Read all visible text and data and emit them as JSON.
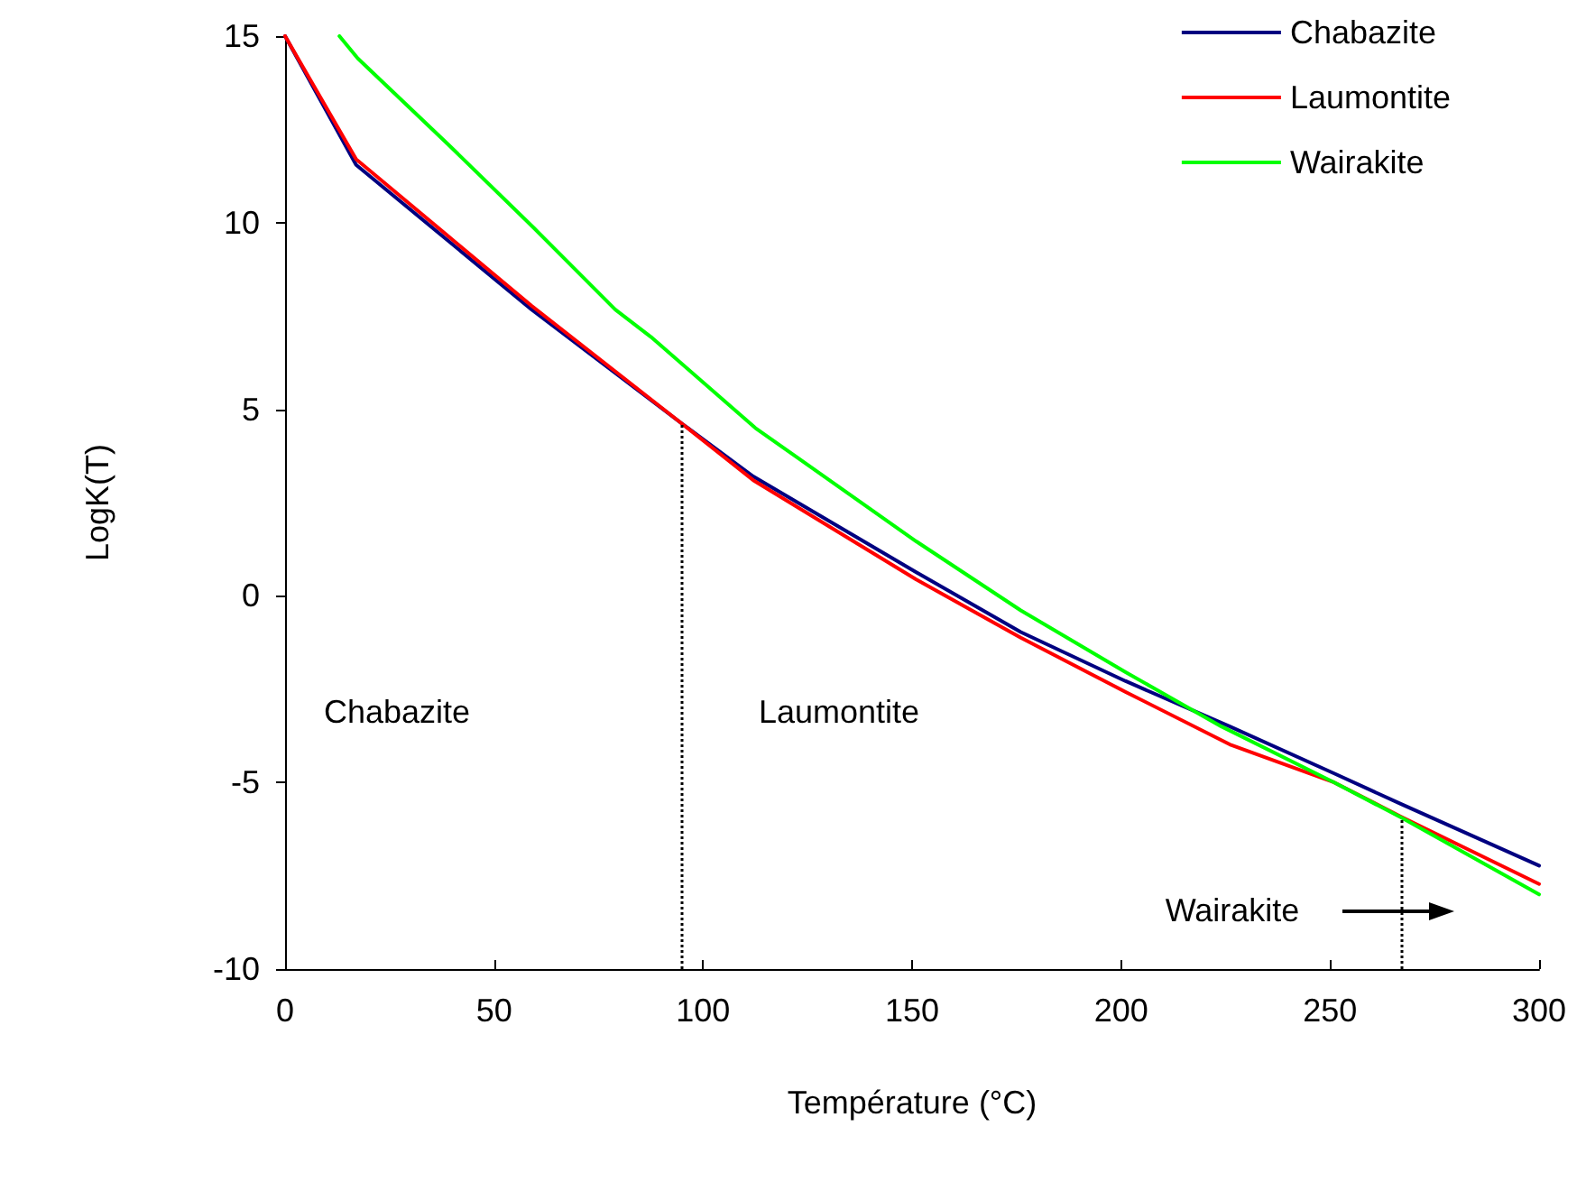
{
  "chart_data": {
    "type": "line",
    "xlabel": "Température (°C)",
    "ylabel": "LogK(T)",
    "xlim": [
      0,
      300
    ],
    "xticks": [
      0,
      50,
      100,
      150,
      200,
      250,
      300
    ],
    "ylim": [
      -10,
      15
    ],
    "yticks": [
      -10,
      -5,
      0,
      5,
      10,
      15
    ],
    "grid": false,
    "legend": "top right",
    "marker": "none",
    "line_style": "solid",
    "series": [
      {
        "name": "Chabazite",
        "color": "#000080",
        "x": [
          0,
          17,
          59,
          95,
          112,
          151,
          176,
          201,
          226,
          251,
          267,
          300
        ],
        "values": [
          15,
          11.55,
          7.67,
          4.61,
          3.2,
          0.63,
          -0.97,
          -2.28,
          -3.5,
          -4.76,
          -5.58,
          -7.23
        ]
      },
      {
        "name": "Laumontite",
        "color": "#ff0000",
        "x": [
          0,
          17,
          59,
          95,
          112,
          151,
          176,
          201,
          226,
          251,
          267,
          300
        ],
        "values": [
          15,
          11.7,
          7.77,
          4.61,
          3.1,
          0.44,
          -1.12,
          -2.57,
          -3.98,
          -5.0,
          -5.92,
          -7.72
        ]
      },
      {
        "name": "Wairakite",
        "color": "#00ff00",
        "x": [
          13,
          17.4,
          39,
          59.6,
          79,
          87.5,
          112.5,
          151,
          176,
          201,
          224,
          251,
          267.5,
          300
        ],
        "values": [
          15,
          14.4,
          12.1,
          9.85,
          7.67,
          6.94,
          4.5,
          1.46,
          -0.39,
          -2.04,
          -3.5,
          -5.0,
          -5.97,
          -8.0
        ]
      }
    ],
    "ref_lines": [
      {
        "axis": "x",
        "value": 95,
        "color": "#000000",
        "line_style": "dotted"
      },
      {
        "axis": "x",
        "value": 267,
        "color": "#000000",
        "line_style": "dotted"
      }
    ],
    "annotations": [
      "Chabazite",
      "Laumontite",
      "Wairakite"
    ]
  }
}
